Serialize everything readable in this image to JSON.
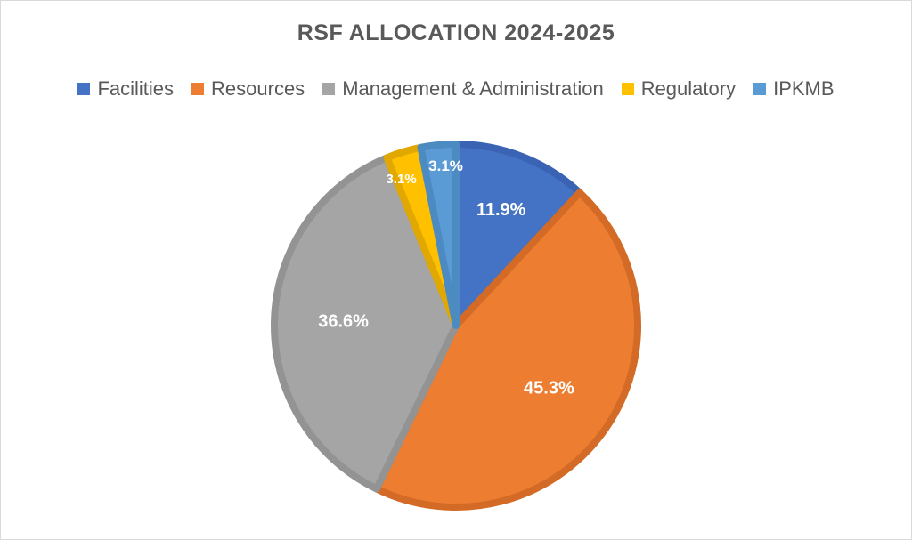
{
  "chart_data": {
    "type": "pie",
    "title": "RSF ALLOCATION 2024-2025",
    "legend_position": "top",
    "categories": [
      "Facilities",
      "Resources",
      "Management & Administration",
      "Regulatory",
      "IPKMB"
    ],
    "values": [
      11.9,
      45.3,
      36.6,
      3.1,
      3.1
    ],
    "labels": [
      "11.9%",
      "45.3%",
      "36.6%",
      "3.1%",
      "3.1%"
    ],
    "colors": [
      "#4472C4",
      "#ED7D31",
      "#A5A5A5",
      "#FFC000",
      "#5B9BD5"
    ],
    "border_colors": [
      "#3A64B3",
      "#D36A26",
      "#939393",
      "#E0A800",
      "#4C8AC2"
    ]
  }
}
